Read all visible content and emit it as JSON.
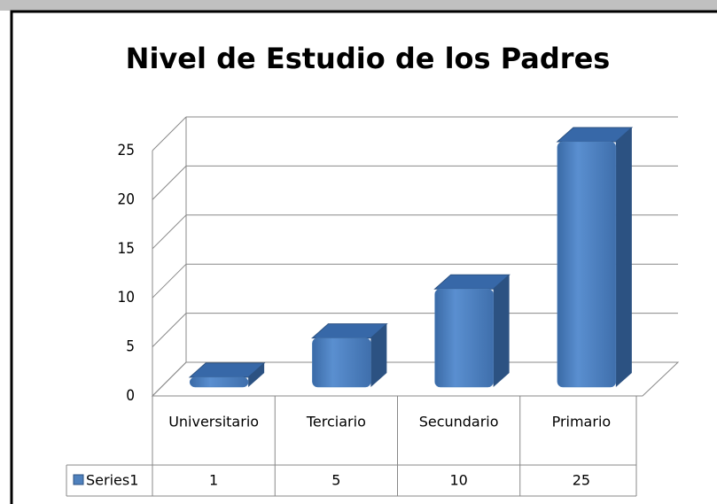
{
  "chart_data": {
    "type": "bar3d",
    "title": "Nivel de Estudio de los Padres",
    "categories": [
      "Universitario",
      "Terciario",
      "Secundario",
      "Primario"
    ],
    "series": [
      {
        "name": "Series1",
        "color": "#4f81bd",
        "values": [
          1,
          5,
          10,
          25
        ]
      }
    ],
    "ylim": [
      0,
      25
    ],
    "yticks": [
      0,
      5,
      10,
      15,
      20,
      25
    ],
    "grid": true,
    "data_table": true
  }
}
